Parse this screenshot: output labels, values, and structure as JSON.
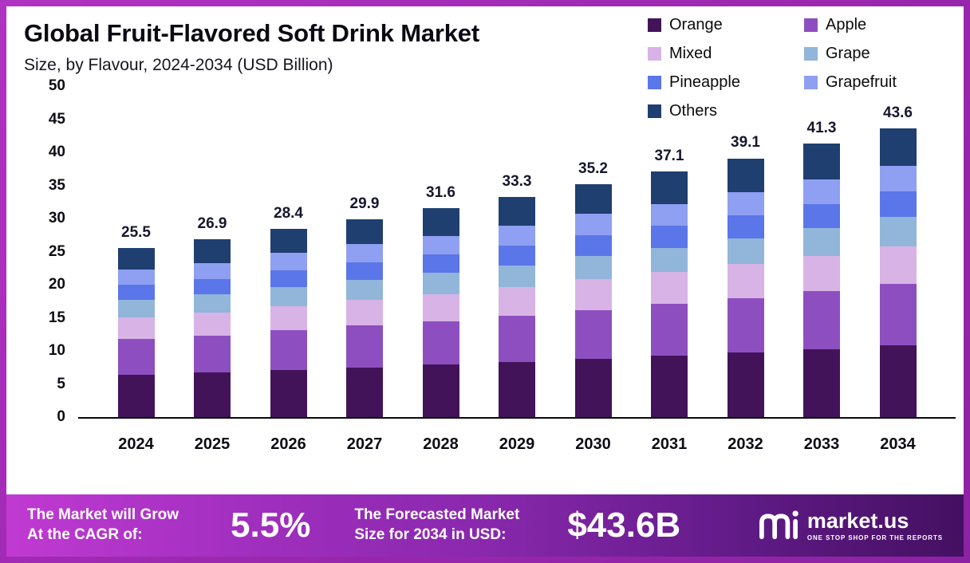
{
  "header": {
    "title": "Global Fruit-Flavored Soft Drink Market",
    "subtitle": "Size, by Flavour, 2024-2034 (USD Billion)"
  },
  "legend": [
    {
      "label": "Orange",
      "color": "#421359"
    },
    {
      "label": "Apple",
      "color": "#8d4fc0"
    },
    {
      "label": "Mixed",
      "color": "#d8b3e6"
    },
    {
      "label": "Grape",
      "color": "#92b5da"
    },
    {
      "label": "Pineapple",
      "color": "#5b76e8"
    },
    {
      "label": "Grapefruit",
      "color": "#8f9ff2"
    },
    {
      "label": "Others",
      "color": "#1e3f70"
    }
  ],
  "chart_data": {
    "type": "bar",
    "stacked": true,
    "title": "Global Fruit-Flavored Soft Drink Market Size, by Flavour, 2024-2034 (USD Billion)",
    "categories": [
      "2024",
      "2025",
      "2026",
      "2027",
      "2028",
      "2029",
      "2030",
      "2031",
      "2032",
      "2033",
      "2034"
    ],
    "totals": [
      25.5,
      26.9,
      28.4,
      29.9,
      31.6,
      33.3,
      35.2,
      37.1,
      39.1,
      41.3,
      43.6
    ],
    "ylim": [
      0,
      50
    ],
    "yticks": [
      0,
      5,
      10,
      15,
      20,
      25,
      30,
      35,
      40,
      45,
      50
    ],
    "grid": false,
    "legend_position": "top-right",
    "series": [
      {
        "name": "Orange",
        "color": "#421359",
        "values": [
          6.4,
          6.7,
          7.1,
          7.5,
          7.9,
          8.3,
          8.8,
          9.3,
          9.8,
          10.3,
          10.9
        ]
      },
      {
        "name": "Apple",
        "color": "#8d4fc0",
        "values": [
          5.4,
          5.6,
          6.0,
          6.3,
          6.6,
          7.0,
          7.4,
          7.8,
          8.2,
          8.7,
          9.2
        ]
      },
      {
        "name": "Mixed",
        "color": "#d8b3e6",
        "values": [
          3.3,
          3.5,
          3.7,
          3.9,
          4.1,
          4.3,
          4.6,
          4.8,
          5.1,
          5.4,
          5.7
        ]
      },
      {
        "name": "Grape",
        "color": "#92b5da",
        "values": [
          2.6,
          2.7,
          2.8,
          3.0,
          3.2,
          3.3,
          3.5,
          3.7,
          3.9,
          4.1,
          4.4
        ]
      },
      {
        "name": "Pineapple",
        "color": "#5b76e8",
        "values": [
          2.3,
          2.4,
          2.6,
          2.7,
          2.8,
          3.0,
          3.2,
          3.3,
          3.5,
          3.7,
          3.9
        ]
      },
      {
        "name": "Grapefruit",
        "color": "#8f9ff2",
        "values": [
          2.3,
          2.4,
          2.6,
          2.7,
          2.8,
          3.0,
          3.2,
          3.3,
          3.5,
          3.7,
          3.9
        ]
      },
      {
        "name": "Others",
        "color": "#1e3f70",
        "values": [
          3.2,
          3.6,
          3.6,
          3.8,
          4.2,
          4.4,
          4.5,
          4.9,
          5.1,
          5.4,
          5.6
        ]
      }
    ]
  },
  "banner": {
    "cagr_line1": "The Market will Grow",
    "cagr_line2": "At the CAGR of:",
    "cagr_value": "5.5%",
    "forecast_line1": "The Forecasted Market",
    "forecast_line2": "Size for 2034 in USD:",
    "forecast_value": "$43.6B",
    "logo_text": "market.us",
    "logo_tagline": "ONE STOP SHOP FOR THE REPORTS"
  }
}
